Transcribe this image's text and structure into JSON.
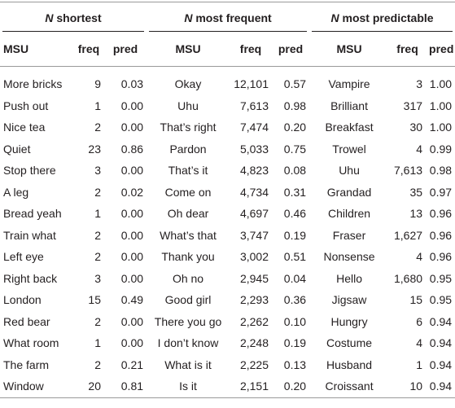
{
  "table": {
    "groups": [
      {
        "var": "N",
        "title": "shortest"
      },
      {
        "var": "N",
        "title": "most frequent"
      },
      {
        "var": "N",
        "title": "most predictable"
      }
    ],
    "columns": [
      "MSU",
      "freq",
      "pred"
    ],
    "rows": [
      [
        "More bricks",
        "9",
        "0.03",
        "Okay",
        "12,101",
        "0.57",
        "Vampire",
        "3",
        "1.00"
      ],
      [
        "Push out",
        "1",
        "0.00",
        "Uhu",
        "7,613",
        "0.98",
        "Brilliant",
        "317",
        "1.00"
      ],
      [
        "Nice tea",
        "2",
        "0.00",
        "That’s right",
        "7,474",
        "0.20",
        "Breakfast",
        "30",
        "1.00"
      ],
      [
        "Quiet",
        "23",
        "0.86",
        "Pardon",
        "5,033",
        "0.75",
        "Trowel",
        "4",
        "0.99"
      ],
      [
        "Stop there",
        "3",
        "0.00",
        "That’s it",
        "4,823",
        "0.08",
        "Uhu",
        "7,613",
        "0.98"
      ],
      [
        "A leg",
        "2",
        "0.02",
        "Come on",
        "4,734",
        "0.31",
        "Grandad",
        "35",
        "0.97"
      ],
      [
        "Bread yeah",
        "1",
        "0.00",
        "Oh dear",
        "4,697",
        "0.46",
        "Children",
        "13",
        "0.96"
      ],
      [
        "Train what",
        "2",
        "0.00",
        "What’s that",
        "3,747",
        "0.19",
        "Fraser",
        "1,627",
        "0.96"
      ],
      [
        "Left eye",
        "2",
        "0.00",
        "Thank you",
        "3,002",
        "0.51",
        "Nonsense",
        "4",
        "0.96"
      ],
      [
        "Right back",
        "3",
        "0.00",
        "Oh no",
        "2,945",
        "0.04",
        "Hello",
        "1,680",
        "0.95"
      ],
      [
        "London",
        "15",
        "0.49",
        "Good girl",
        "2,293",
        "0.36",
        "Jigsaw",
        "15",
        "0.95"
      ],
      [
        "Red bear",
        "2",
        "0.00",
        "There you go",
        "2,262",
        "0.10",
        "Hungry",
        "6",
        "0.94"
      ],
      [
        "What room",
        "1",
        "0.00",
        "I don’t know",
        "2,248",
        "0.19",
        "Costume",
        "4",
        "0.94"
      ],
      [
        "The farm",
        "2",
        "0.21",
        "What is it",
        "2,225",
        "0.13",
        "Husband",
        "1",
        "0.94"
      ],
      [
        "Window",
        "20",
        "0.81",
        "Is it",
        "2,151",
        "0.20",
        "Croissant",
        "10",
        "0.94"
      ]
    ]
  }
}
